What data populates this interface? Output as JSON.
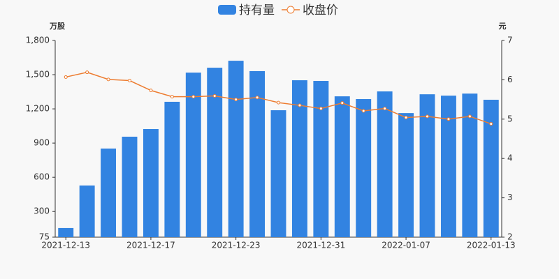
{
  "chart_data": {
    "type": "bar-line",
    "y_label": "万股",
    "y2_label": "元",
    "categories": [
      "2021-12-13",
      null,
      null,
      null,
      "2021-12-17",
      null,
      null,
      null,
      "2021-12-23",
      null,
      null,
      null,
      "2021-12-31",
      null,
      null,
      null,
      "2022-01-07",
      null,
      null,
      null,
      "2022-01-13"
    ],
    "series": [
      {
        "name": "持有量",
        "color": "#3283e1",
        "kind": "bar",
        "values": [
          155,
          528,
          852,
          956,
          1023,
          1262,
          1518,
          1561,
          1622,
          1531,
          1188,
          1451,
          1445,
          1310,
          1286,
          1353,
          1163,
          1328,
          1316,
          1334,
          1280
        ]
      },
      {
        "name": "收盘价",
        "color": "#ed7c30",
        "kind": "line",
        "axis": "y2",
        "values": [
          6.07,
          6.19,
          6.01,
          5.98,
          5.73,
          5.57,
          5.57,
          5.59,
          5.5,
          5.55,
          5.42,
          5.35,
          5.27,
          5.41,
          5.21,
          5.27,
          5.04,
          5.07,
          5.0,
          5.07,
          4.88
        ]
      }
    ],
    "ylim": [
      75,
      1800
    ],
    "yticks": [
      75,
      300,
      600,
      900,
      {
        "value": 1200,
        "label": "1,200"
      },
      {
        "value": 1500,
        "label": "1,500"
      },
      {
        "value": 1800,
        "label": "1,800"
      }
    ],
    "y2lim": [
      2,
      7
    ],
    "y2ticks": [
      2,
      3,
      4,
      5,
      6,
      7
    ]
  }
}
